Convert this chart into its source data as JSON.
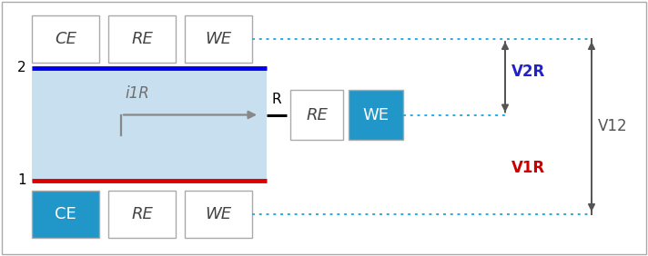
{
  "fig_width": 7.12,
  "fig_height": 2.82,
  "dpi": 100,
  "bg_color": "#ffffff",
  "border_color": "#aaaaaa",
  "cell_border_color": "#aaaaaa",
  "blue_fill": "#2196C8",
  "light_blue_fill": "#C8DFF0",
  "top_line_color": "#0000EE",
  "bottom_line_color": "#DD0000",
  "arrow_gray": "#888888",
  "black": "#000000",
  "dotted_color": "#29ABE2",
  "v2r_color": "#2222CC",
  "v1r_color": "#CC0000",
  "v12_color": "#555555",
  "arrow_v_color": "#555555",
  "label_2": "2",
  "label_1": "1",
  "label_i1r": "i1R",
  "label_R": "R",
  "label_V2R": "V2R",
  "label_V1R": "V1R",
  "label_V12": "V12",
  "boxes_top": [
    {
      "label": "CE",
      "fill": "#ffffff",
      "text_color": "#444444",
      "italic": true
    },
    {
      "label": "RE",
      "fill": "#ffffff",
      "text_color": "#444444",
      "italic": true
    },
    {
      "label": "WE",
      "fill": "#ffffff",
      "text_color": "#444444",
      "italic": true
    }
  ],
  "boxes_bottom": [
    {
      "label": "CE",
      "fill": "#2196C8",
      "text_color": "#ffffff",
      "italic": false
    },
    {
      "label": "RE",
      "fill": "#ffffff",
      "text_color": "#444444",
      "italic": true
    },
    {
      "label": "WE",
      "fill": "#ffffff",
      "text_color": "#444444",
      "italic": true
    }
  ],
  "box_mid_RE": {
    "label": "RE",
    "fill": "#ffffff",
    "text_color": "#444444",
    "italic": true
  },
  "box_mid_WE": {
    "label": "WE",
    "fill": "#2196C8",
    "text_color": "#ffffff",
    "italic": false
  },
  "outer_border": true
}
